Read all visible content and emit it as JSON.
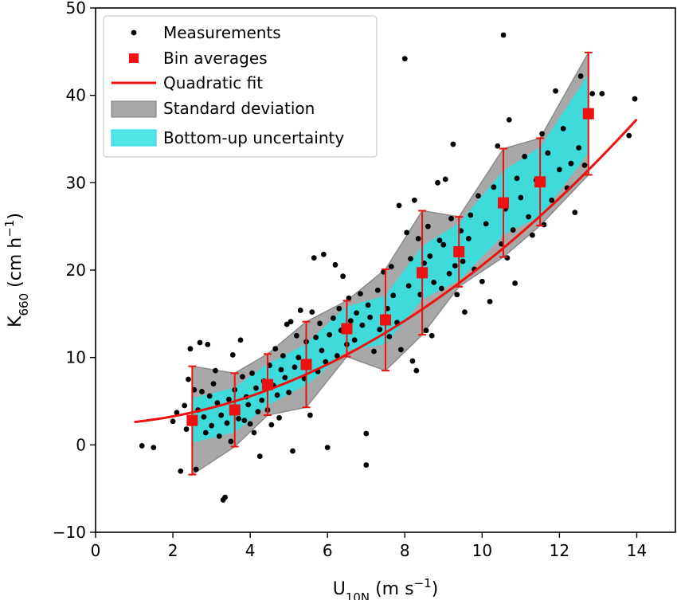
{
  "chart_data": {
    "type": "scatter",
    "title": "",
    "xlabel": {
      "main": "U",
      "sub": "10N",
      "rest": " (m s",
      "sup": "−1",
      "end": ")"
    },
    "ylabel": {
      "main": "K",
      "sub": "660",
      "rest": " (cm h",
      "sup": "−1",
      "end": ")"
    },
    "xlim": [
      0,
      15
    ],
    "ylim": [
      -10,
      50
    ],
    "xticks": [
      "0",
      "2",
      "4",
      "6",
      "8",
      "10",
      "12",
      "14"
    ],
    "yticks": [
      "−10",
      "0",
      "10",
      "20",
      "30",
      "40",
      "50"
    ],
    "grid": false,
    "legend_position": "top-left",
    "legend": [
      {
        "key": "measurements",
        "label": "Measurements"
      },
      {
        "key": "bins",
        "label": "Bin averages"
      },
      {
        "key": "fit",
        "label": "Quadratic fit"
      },
      {
        "key": "std",
        "label": "Standard deviation"
      },
      {
        "key": "bottomup",
        "label": "Bottom-up uncertainty"
      }
    ],
    "colors": {
      "measurements": "#000000",
      "bins": "#ee1111",
      "fit": "#ee1111",
      "std_fill": "#a8a8a8",
      "std_edge": "#888888",
      "bottomup_fill": "#33e0e0",
      "bottomup_edge": "#33e0e0"
    },
    "quadratic_fit": {
      "a": 0.168,
      "b": 0.145,
      "c": 2.3,
      "x_range": [
        1.0,
        14.0
      ]
    },
    "bins": {
      "x": [
        2.5,
        3.6,
        4.45,
        5.45,
        6.5,
        7.5,
        8.45,
        9.4,
        10.55,
        11.5,
        12.75
      ],
      "mean": [
        2.8,
        4.0,
        6.9,
        9.2,
        13.3,
        14.3,
        19.7,
        22.1,
        27.7,
        30.1,
        37.9
      ],
      "std": [
        6.2,
        4.2,
        3.5,
        4.9,
        3.2,
        5.8,
        7.1,
        4.0,
        6.2,
        5.0,
        7.0
      ],
      "bottom_up_half_width": [
        2.5,
        2.5,
        2.3,
        2.3,
        2.5,
        2.7,
        3.0,
        3.2,
        3.6,
        3.9,
        4.4
      ]
    },
    "measurements": [
      [
        1.2,
        -0.1
      ],
      [
        1.5,
        -0.3
      ],
      [
        2.0,
        2.7
      ],
      [
        2.1,
        3.7
      ],
      [
        2.2,
        -3.0
      ],
      [
        2.3,
        4.5
      ],
      [
        2.35,
        1.8
      ],
      [
        2.4,
        7.5
      ],
      [
        2.45,
        11.0
      ],
      [
        2.55,
        6.3
      ],
      [
        2.6,
        -2.8
      ],
      [
        2.65,
        4.0
      ],
      [
        2.7,
        11.7
      ],
      [
        2.75,
        6.1
      ],
      [
        2.8,
        3.2
      ],
      [
        2.85,
        1.4
      ],
      [
        2.9,
        11.5
      ],
      [
        2.95,
        5.6
      ],
      [
        3.0,
        2.2
      ],
      [
        3.05,
        7.0
      ],
      [
        3.1,
        8.5
      ],
      [
        3.15,
        4.8
      ],
      [
        3.2,
        1.0
      ],
      [
        3.25,
        3.4
      ],
      [
        3.3,
        -6.3
      ],
      [
        3.35,
        -6.0
      ],
      [
        3.4,
        2.5
      ],
      [
        3.45,
        5.2
      ],
      [
        3.5,
        0.4
      ],
      [
        3.55,
        10.3
      ],
      [
        3.6,
        6.3
      ],
      [
        3.7,
        3.0
      ],
      [
        3.75,
        12.0
      ],
      [
        3.8,
        7.8
      ],
      [
        3.85,
        2.8
      ],
      [
        3.9,
        5.5
      ],
      [
        3.95,
        4.6
      ],
      [
        4.0,
        2.4
      ],
      [
        4.05,
        8.2
      ],
      [
        4.1,
        1.4
      ],
      [
        4.15,
        6.5
      ],
      [
        4.2,
        3.8
      ],
      [
        4.25,
        -1.3
      ],
      [
        4.3,
        5.1
      ],
      [
        4.35,
        7.3
      ],
      [
        4.45,
        4.0
      ],
      [
        4.5,
        9.1
      ],
      [
        4.55,
        2.3
      ],
      [
        4.6,
        6.8
      ],
      [
        4.65,
        11.0
      ],
      [
        4.7,
        5.7
      ],
      [
        4.75,
        3.1
      ],
      [
        4.8,
        8.6
      ],
      [
        4.85,
        10.2
      ],
      [
        4.9,
        7.7
      ],
      [
        4.95,
        13.8
      ],
      [
        5.0,
        6.0
      ],
      [
        5.05,
        14.1
      ],
      [
        5.1,
        -0.7
      ],
      [
        5.15,
        8.9
      ],
      [
        5.2,
        12.5
      ],
      [
        5.25,
        10.0
      ],
      [
        5.3,
        15.4
      ],
      [
        5.4,
        7.6
      ],
      [
        5.45,
        11.8
      ],
      [
        5.5,
        9.4
      ],
      [
        5.55,
        3.4
      ],
      [
        5.6,
        15.2
      ],
      [
        5.65,
        21.4
      ],
      [
        5.7,
        12.3
      ],
      [
        5.75,
        8.4
      ],
      [
        5.8,
        13.9
      ],
      [
        5.85,
        10.8
      ],
      [
        5.9,
        21.8
      ],
      [
        5.95,
        9.5
      ],
      [
        6.0,
        -0.3
      ],
      [
        6.05,
        12.6
      ],
      [
        6.15,
        14.5
      ],
      [
        6.2,
        20.6
      ],
      [
        6.25,
        10.2
      ],
      [
        6.3,
        15.6
      ],
      [
        6.35,
        13.1
      ],
      [
        6.4,
        19.3
      ],
      [
        6.5,
        11.5
      ],
      [
        6.55,
        16.8
      ],
      [
        6.6,
        14.2
      ],
      [
        6.7,
        12.0
      ],
      [
        6.75,
        15.1
      ],
      [
        6.85,
        17.3
      ],
      [
        6.9,
        13.7
      ],
      [
        7.0,
        1.3
      ],
      [
        7.0,
        -2.3
      ],
      [
        7.05,
        16.0
      ],
      [
        7.1,
        14.6
      ],
      [
        7.2,
        10.7
      ],
      [
        7.3,
        17.7
      ],
      [
        7.35,
        13.2
      ],
      [
        7.45,
        19.8
      ],
      [
        7.55,
        15.6
      ],
      [
        7.6,
        12.4
      ],
      [
        7.65,
        20.4
      ],
      [
        7.7,
        17.1
      ],
      [
        7.8,
        14.0
      ],
      [
        7.85,
        27.4
      ],
      [
        7.9,
        10.9
      ],
      [
        8.0,
        44.2
      ],
      [
        8.05,
        24.3
      ],
      [
        8.1,
        18.2
      ],
      [
        8.15,
        21.3
      ],
      [
        8.2,
        9.6
      ],
      [
        8.25,
        28.0
      ],
      [
        8.3,
        8.5
      ],
      [
        8.35,
        23.6
      ],
      [
        8.4,
        17.2
      ],
      [
        8.5,
        20.8
      ],
      [
        8.55,
        13.1
      ],
      [
        8.6,
        25.0
      ],
      [
        8.65,
        21.6
      ],
      [
        8.7,
        12.5
      ],
      [
        8.75,
        18.6
      ],
      [
        8.85,
        30.0
      ],
      [
        8.9,
        23.4
      ],
      [
        8.95,
        17.9
      ],
      [
        9.0,
        22.9
      ],
      [
        9.05,
        30.4
      ],
      [
        9.15,
        19.6
      ],
      [
        9.2,
        25.9
      ],
      [
        9.25,
        34.4
      ],
      [
        9.3,
        20.5
      ],
      [
        9.35,
        17.2
      ],
      [
        9.45,
        24.5
      ],
      [
        9.5,
        21.0
      ],
      [
        9.55,
        15.2
      ],
      [
        9.65,
        23.6
      ],
      [
        9.7,
        26.3
      ],
      [
        9.8,
        20.1
      ],
      [
        9.9,
        28.5
      ],
      [
        10.0,
        18.7
      ],
      [
        10.1,
        25.3
      ],
      [
        10.2,
        16.4
      ],
      [
        10.3,
        29.5
      ],
      [
        10.4,
        34.2
      ],
      [
        10.5,
        23.0
      ],
      [
        10.55,
        46.9
      ],
      [
        10.6,
        27.0
      ],
      [
        10.65,
        21.4
      ],
      [
        10.7,
        37.2
      ],
      [
        10.8,
        24.6
      ],
      [
        10.85,
        18.5
      ],
      [
        10.9,
        30.5
      ],
      [
        11.0,
        28.3
      ],
      [
        11.1,
        33.0
      ],
      [
        11.2,
        26.1
      ],
      [
        11.3,
        24.0
      ],
      [
        11.4,
        30.3
      ],
      [
        11.55,
        35.6
      ],
      [
        11.6,
        25.2
      ],
      [
        11.7,
        33.4
      ],
      [
        11.8,
        28.0
      ],
      [
        11.9,
        40.5
      ],
      [
        12.0,
        31.5
      ],
      [
        12.1,
        36.2
      ],
      [
        12.2,
        29.4
      ],
      [
        12.3,
        32.2
      ],
      [
        12.4,
        26.6
      ],
      [
        12.5,
        34.0
      ],
      [
        12.55,
        42.2
      ],
      [
        12.65,
        32.0
      ],
      [
        12.85,
        40.2
      ],
      [
        13.1,
        40.2
      ],
      [
        13.8,
        35.4
      ],
      [
        13.95,
        39.6
      ]
    ]
  }
}
